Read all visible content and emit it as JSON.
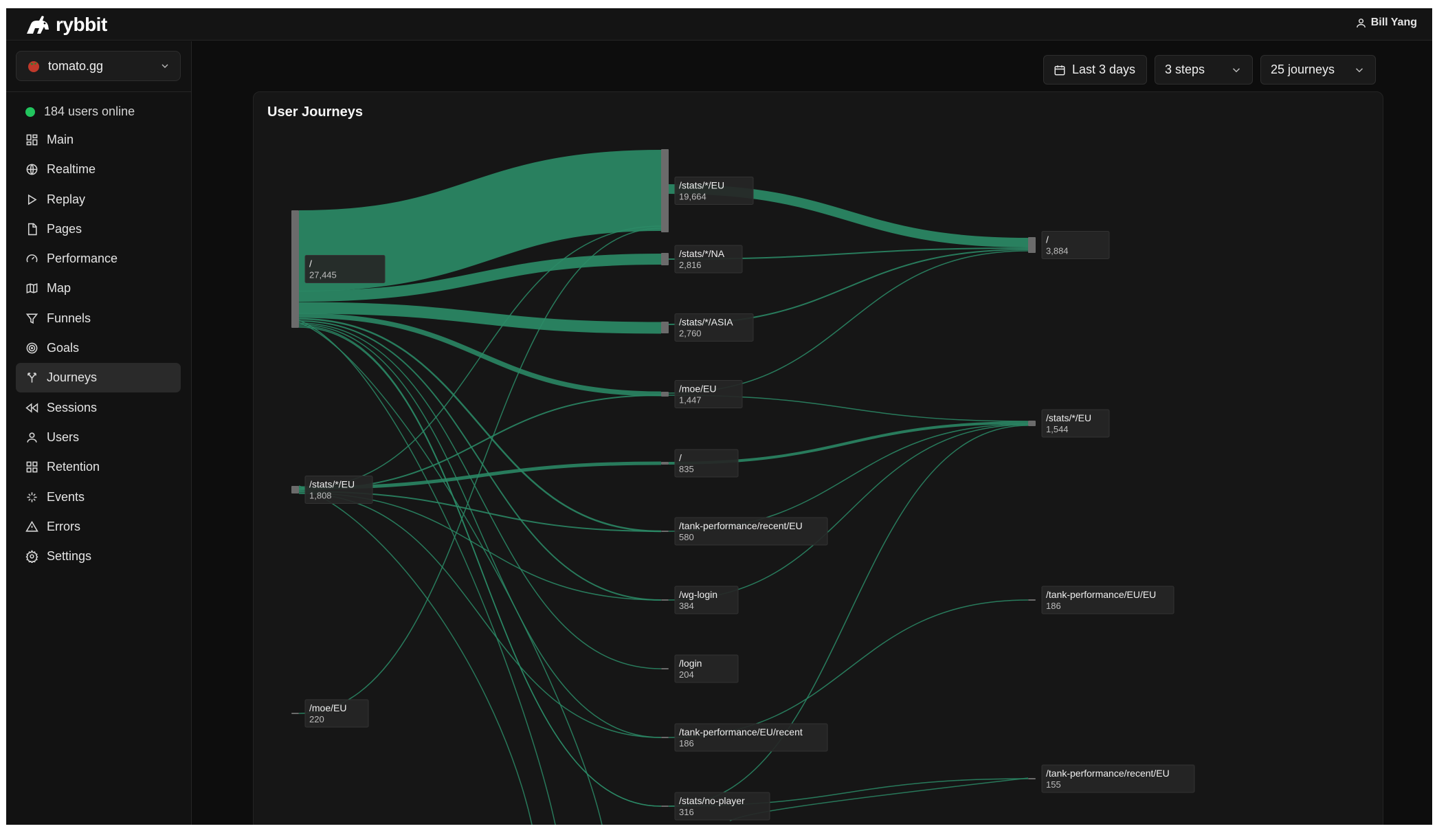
{
  "app": {
    "brand": "rybbit",
    "user": "Bill Yang"
  },
  "sidebar": {
    "site": "tomato.gg",
    "online": "184 users online",
    "items": [
      {
        "label": "Main",
        "icon": "grid-icon"
      },
      {
        "label": "Realtime",
        "icon": "globe-icon"
      },
      {
        "label": "Replay",
        "icon": "play-icon"
      },
      {
        "label": "Pages",
        "icon": "file-icon"
      },
      {
        "label": "Performance",
        "icon": "gauge-icon"
      },
      {
        "label": "Map",
        "icon": "map-icon"
      },
      {
        "label": "Funnels",
        "icon": "funnel-icon"
      },
      {
        "label": "Goals",
        "icon": "target-icon"
      },
      {
        "label": "Journeys",
        "icon": "split-icon",
        "active": true
      },
      {
        "label": "Sessions",
        "icon": "rewind-icon"
      },
      {
        "label": "Users",
        "icon": "user-icon"
      },
      {
        "label": "Retention",
        "icon": "grid-icon"
      },
      {
        "label": "Events",
        "icon": "sparkle-icon"
      },
      {
        "label": "Errors",
        "icon": "alert-triangle-icon"
      },
      {
        "label": "Settings",
        "icon": "gear-icon"
      }
    ]
  },
  "controls": {
    "date": "Last 3 days",
    "steps": "3 steps",
    "journeys": "25 journeys"
  },
  "card": {
    "title": "User Journeys"
  },
  "colors": {
    "flow": "#2b8a66",
    "node": "#6b6b6b",
    "label_bg": "#262626",
    "online_dot": "#22c55e"
  },
  "chart_data": {
    "type": "sankey",
    "steps": 3,
    "nodes": [
      {
        "id": "s1_root",
        "step": 1,
        "label": "/",
        "count": "27,445"
      },
      {
        "id": "s1_statsEU",
        "step": 1,
        "label": "/stats/*/EU",
        "count": "1,808"
      },
      {
        "id": "s1_moeEU",
        "step": 1,
        "label": "/moe/EU",
        "count": "220"
      },
      {
        "id": "s2_statsEU",
        "step": 2,
        "label": "/stats/*/EU",
        "count": "19,664"
      },
      {
        "id": "s2_statsNA",
        "step": 2,
        "label": "/stats/*/NA",
        "count": "2,816"
      },
      {
        "id": "s2_statsASIA",
        "step": 2,
        "label": "/stats/*/ASIA",
        "count": "2,760"
      },
      {
        "id": "s2_moeEU",
        "step": 2,
        "label": "/moe/EU",
        "count": "1,447"
      },
      {
        "id": "s2_root",
        "step": 2,
        "label": "/",
        "count": "835"
      },
      {
        "id": "s2_tankRecentEU",
        "step": 2,
        "label": "/tank-performance/recent/EU",
        "count": "580"
      },
      {
        "id": "s2_wgLogin",
        "step": 2,
        "label": "/wg-login",
        "count": "384"
      },
      {
        "id": "s2_login",
        "step": 2,
        "label": "/login",
        "count": "204"
      },
      {
        "id": "s2_tankEURecent",
        "step": 2,
        "label": "/tank-performance/EU/recent",
        "count": "186"
      },
      {
        "id": "s2_noPlayer",
        "step": 2,
        "label": "/stats/no-player",
        "count": "316"
      },
      {
        "id": "s3_root",
        "step": 3,
        "label": "/",
        "count": "3,884"
      },
      {
        "id": "s3_statsEU",
        "step": 3,
        "label": "/stats/*/EU",
        "count": "1,544"
      },
      {
        "id": "s3_tankEUEU",
        "step": 3,
        "label": "/tank-performance/EU/EU",
        "count": "186"
      },
      {
        "id": "s3_tankRecentEU",
        "step": 3,
        "label": "/tank-performance/recent/EU",
        "count": "155"
      }
    ]
  }
}
